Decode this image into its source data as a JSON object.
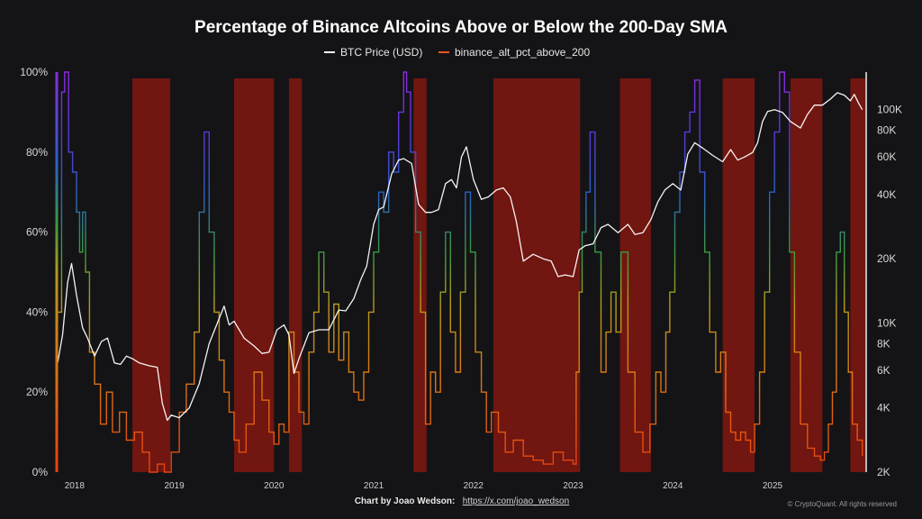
{
  "chart_data": {
    "type": "line",
    "title": "Percentage of Binance Altcoins Above or Below the 200-Day SMA",
    "legend": {
      "position": "top-center",
      "items": [
        {
          "name": "BTC Price (USD)",
          "color": "#ffffff"
        },
        {
          "name": "binance_alt_pct_above_200",
          "color": "#e8561f"
        }
      ]
    },
    "x_range": [
      2017.83,
      2025.93
    ],
    "x_ticks": [
      {
        "label": "2018",
        "value": 2018.0
      },
      {
        "label": "2019",
        "value": 2019.0
      },
      {
        "label": "2020",
        "value": 2020.0
      },
      {
        "label": "2021",
        "value": 2021.0
      },
      {
        "label": "2022",
        "value": 2022.0
      },
      {
        "label": "2023",
        "value": 2023.0
      },
      {
        "label": "2024",
        "value": 2024.0
      },
      {
        "label": "2025",
        "value": 2025.0
      }
    ],
    "y_left": {
      "range": [
        0,
        100
      ],
      "ticks": [
        {
          "label": "0%",
          "value": 0
        },
        {
          "label": "20%",
          "value": 20
        },
        {
          "label": "40%",
          "value": 40
        },
        {
          "label": "60%",
          "value": 60
        },
        {
          "label": "80%",
          "value": 80
        },
        {
          "label": "100%",
          "value": 100
        }
      ]
    },
    "y_right": {
      "scale": "log",
      "range": [
        2000,
        150000
      ],
      "ticks": [
        {
          "label": "2K",
          "value": 2000
        },
        {
          "label": "4K",
          "value": 4000
        },
        {
          "label": "6K",
          "value": 6000
        },
        {
          "label": "8K",
          "value": 8000
        },
        {
          "label": "10K",
          "value": 10000
        },
        {
          "label": "20K",
          "value": 20000
        },
        {
          "label": "40K",
          "value": 40000
        },
        {
          "label": "60K",
          "value": 60000
        },
        {
          "label": "80K",
          "value": 80000
        },
        {
          "label": "100K",
          "value": 100000
        }
      ]
    },
    "bear_zones": [
      [
        2018.58,
        2018.96
      ],
      [
        2019.6,
        2020.0
      ],
      [
        2020.15,
        2020.28
      ],
      [
        2021.4,
        2021.53
      ],
      [
        2022.2,
        2023.07
      ],
      [
        2023.47,
        2023.78
      ],
      [
        2024.5,
        2024.82
      ],
      [
        2025.18,
        2025.5
      ],
      [
        2025.78,
        2025.93
      ]
    ],
    "series": [
      {
        "name": "BTC Price (USD)",
        "axis": "right",
        "x": [
          2017.83,
          2017.88,
          2017.93,
          2017.97,
          2018.02,
          2018.08,
          2018.13,
          2018.2,
          2018.27,
          2018.33,
          2018.4,
          2018.46,
          2018.52,
          2018.58,
          2018.65,
          2018.75,
          2018.83,
          2018.88,
          2018.93,
          2018.97,
          2019.05,
          2019.15,
          2019.25,
          2019.35,
          2019.45,
          2019.5,
          2019.55,
          2019.6,
          2019.7,
          2019.8,
          2019.88,
          2019.95,
          2020.03,
          2020.1,
          2020.15,
          2020.2,
          2020.25,
          2020.35,
          2020.45,
          2020.55,
          2020.65,
          2020.72,
          2020.8,
          2020.87,
          2020.93,
          2021.0,
          2021.05,
          2021.1,
          2021.18,
          2021.25,
          2021.3,
          2021.38,
          2021.45,
          2021.52,
          2021.58,
          2021.65,
          2021.72,
          2021.78,
          2021.83,
          2021.88,
          2021.93,
          2022.0,
          2022.08,
          2022.15,
          2022.23,
          2022.3,
          2022.37,
          2022.43,
          2022.5,
          2022.6,
          2022.7,
          2022.78,
          2022.85,
          2022.92,
          2023.0,
          2023.06,
          2023.12,
          2023.2,
          2023.28,
          2023.35,
          2023.45,
          2023.55,
          2023.62,
          2023.7,
          2023.78,
          2023.85,
          2023.92,
          2024.0,
          2024.08,
          2024.15,
          2024.22,
          2024.3,
          2024.4,
          2024.5,
          2024.58,
          2024.65,
          2024.72,
          2024.8,
          2024.85,
          2024.9,
          2024.95,
          2025.02,
          2025.1,
          2025.18,
          2025.28,
          2025.35,
          2025.42,
          2025.5,
          2025.58,
          2025.65,
          2025.72,
          2025.78,
          2025.82,
          2025.86,
          2025.9
        ],
        "y": [
          6500,
          8800,
          15500,
          19000,
          13500,
          9500,
          8500,
          7000,
          8200,
          8500,
          6500,
          6400,
          7000,
          6800,
          6500,
          6300,
          6200,
          4200,
          3500,
          3700,
          3600,
          4000,
          5200,
          8000,
          10500,
          12000,
          9800,
          10200,
          8500,
          7800,
          7200,
          7300,
          9300,
          9800,
          8800,
          5800,
          6800,
          9000,
          9300,
          9300,
          11500,
          11400,
          13000,
          16000,
          18500,
          29000,
          34000,
          35000,
          50000,
          58000,
          59000,
          56000,
          36000,
          33000,
          33000,
          34000,
          45000,
          47000,
          43000,
          60000,
          67000,
          47000,
          38000,
          39000,
          42000,
          43000,
          39000,
          30000,
          19500,
          21000,
          20000,
          19500,
          16500,
          16800,
          16500,
          22000,
          23000,
          23500,
          28000,
          29000,
          26500,
          29000,
          26000,
          26500,
          30500,
          37000,
          42000,
          45000,
          42000,
          62000,
          70000,
          66000,
          61000,
          57000,
          65000,
          58000,
          60000,
          63000,
          70000,
          88000,
          98000,
          100000,
          97000,
          88000,
          82000,
          95000,
          105000,
          105000,
          112000,
          120000,
          117000,
          110000,
          118000,
          108000,
          100000
        ]
      },
      {
        "name": "binance_alt_pct_above_200",
        "axis": "left",
        "x": [
          2017.83,
          2017.87,
          2017.9,
          2017.94,
          2017.98,
          2018.02,
          2018.05,
          2018.08,
          2018.11,
          2018.15,
          2018.2,
          2018.26,
          2018.32,
          2018.38,
          2018.45,
          2018.52,
          2018.6,
          2018.68,
          2018.75,
          2018.83,
          2018.9,
          2018.97,
          2019.05,
          2019.12,
          2019.2,
          2019.25,
          2019.3,
          2019.35,
          2019.4,
          2019.45,
          2019.5,
          2019.55,
          2019.6,
          2019.65,
          2019.72,
          2019.8,
          2019.88,
          2019.95,
          2020.0,
          2020.05,
          2020.1,
          2020.15,
          2020.2,
          2020.25,
          2020.3,
          2020.35,
          2020.4,
          2020.45,
          2020.5,
          2020.55,
          2020.6,
          2020.65,
          2020.7,
          2020.75,
          2020.8,
          2020.85,
          2020.9,
          2020.95,
          2021.0,
          2021.05,
          2021.1,
          2021.15,
          2021.2,
          2021.25,
          2021.3,
          2021.33,
          2021.37,
          2021.42,
          2021.47,
          2021.52,
          2021.57,
          2021.62,
          2021.67,
          2021.72,
          2021.77,
          2021.82,
          2021.87,
          2021.92,
          2021.97,
          2022.02,
          2022.08,
          2022.13,
          2022.18,
          2022.25,
          2022.32,
          2022.4,
          2022.5,
          2022.6,
          2022.7,
          2022.8,
          2022.9,
          2023.0,
          2023.03,
          2023.06,
          2023.09,
          2023.13,
          2023.17,
          2023.22,
          2023.28,
          2023.33,
          2023.38,
          2023.43,
          2023.48,
          2023.55,
          2023.62,
          2023.7,
          2023.77,
          2023.83,
          2023.88,
          2023.93,
          2023.97,
          2024.02,
          2024.07,
          2024.12,
          2024.17,
          2024.22,
          2024.27,
          2024.32,
          2024.37,
          2024.43,
          2024.48,
          2024.53,
          2024.58,
          2024.63,
          2024.68,
          2024.73,
          2024.78,
          2024.82,
          2024.87,
          2024.92,
          2024.97,
          2025.02,
          2025.07,
          2025.12,
          2025.17,
          2025.22,
          2025.28,
          2025.35,
          2025.42,
          2025.48,
          2025.52,
          2025.56,
          2025.6,
          2025.64,
          2025.68,
          2025.72,
          2025.76,
          2025.8,
          2025.85,
          2025.9
        ],
        "y": [
          40,
          95,
          100,
          80,
          75,
          65,
          55,
          65,
          50,
          30,
          22,
          12,
          20,
          10,
          15,
          8,
          10,
          5,
          0,
          2,
          0,
          5,
          15,
          22,
          35,
          65,
          85,
          60,
          40,
          28,
          20,
          15,
          8,
          5,
          12,
          25,
          18,
          10,
          7,
          12,
          10,
          35,
          25,
          15,
          12,
          30,
          40,
          55,
          45,
          30,
          42,
          28,
          35,
          25,
          20,
          18,
          25,
          40,
          55,
          70,
          65,
          80,
          75,
          90,
          100,
          95,
          80,
          60,
          40,
          12,
          25,
          20,
          45,
          60,
          35,
          25,
          45,
          70,
          55,
          30,
          20,
          10,
          15,
          10,
          5,
          8,
          4,
          3,
          2,
          5,
          3,
          2,
          25,
          45,
          60,
          70,
          85,
          55,
          25,
          35,
          45,
          35,
          55,
          25,
          10,
          5,
          12,
          25,
          20,
          35,
          45,
          65,
          75,
          85,
          90,
          98,
          75,
          55,
          35,
          25,
          30,
          15,
          10,
          8,
          10,
          8,
          5,
          12,
          25,
          45,
          70,
          85,
          100,
          95,
          55,
          30,
          12,
          6,
          4,
          3,
          5,
          12,
          20,
          55,
          60,
          40,
          25,
          12,
          8,
          4
        ]
      }
    ]
  },
  "footer": {
    "prefix": "Chart by Joao Wedson:",
    "link": "https://x.com/joao_wedson",
    "credit": "© CryptoQuant. All rights reserved"
  }
}
